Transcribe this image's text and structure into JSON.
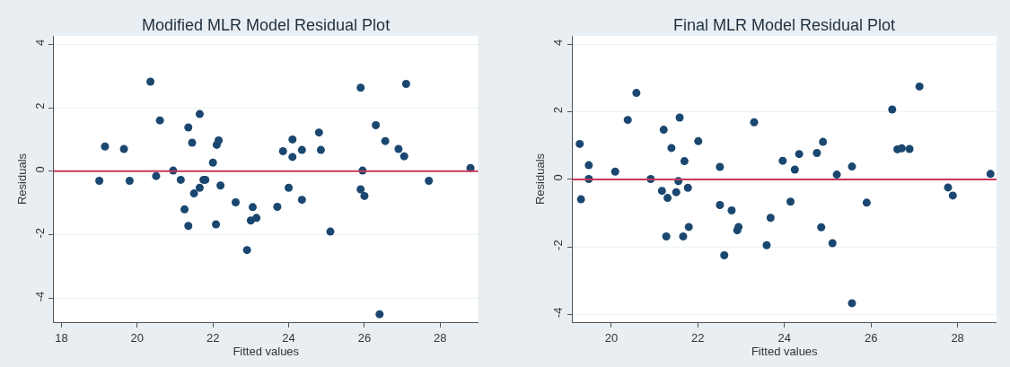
{
  "chart_data": [
    {
      "type": "scatter",
      "title": "Modified MLR Model Residual Plot",
      "xlabel": "Fitted values",
      "ylabel": "Residuals",
      "marker": "circle",
      "grid": "y",
      "xlim": [
        17.8,
        29.0
      ],
      "ylim": [
        -4.75,
        4.26
      ],
      "xticks": [
        18,
        20,
        22,
        24,
        26,
        28
      ],
      "yticks": [
        -4,
        -2,
        0,
        2,
        4
      ],
      "ref_lines": [
        {
          "axis": "y",
          "value": 0,
          "color": "#c8385a"
        }
      ],
      "series": [
        {
          "color": "#1a476f",
          "x": [
            19.0,
            19.15,
            19.65,
            19.8,
            20.35,
            20.5,
            20.6,
            20.95,
            21.15,
            21.25,
            21.35,
            21.35,
            21.45,
            21.5,
            21.65,
            21.65,
            21.75,
            21.8,
            22.0,
            22.08,
            22.1,
            22.15,
            22.2,
            22.6,
            22.9,
            23.0,
            23.05,
            23.15,
            23.7,
            23.85,
            24.0,
            24.1,
            24.1,
            24.35,
            24.35,
            24.8,
            24.85,
            25.1,
            25.9,
            25.9,
            25.95,
            26.0,
            26.3,
            26.4,
            26.55,
            26.9,
            27.05,
            27.1,
            27.7,
            28.8
          ],
          "values": [
            -0.3,
            0.78,
            0.7,
            -0.3,
            2.82,
            -0.15,
            1.6,
            0.02,
            -0.27,
            -1.2,
            1.38,
            -1.72,
            0.9,
            -0.7,
            1.8,
            -0.52,
            -0.27,
            -0.27,
            0.27,
            -1.67,
            0.83,
            0.97,
            -0.45,
            -0.98,
            -2.48,
            -1.55,
            -1.13,
            -1.47,
            -1.12,
            0.63,
            -0.52,
            0.45,
            1.0,
            0.67,
            -0.9,
            1.22,
            0.67,
            -1.9,
            2.63,
            -0.57,
            0.02,
            -0.78,
            1.45,
            -4.5,
            0.95,
            0.7,
            0.47,
            2.75,
            -0.3,
            0.1
          ]
        }
      ]
    },
    {
      "type": "scatter",
      "title": "Final MLR Model Residual Plot",
      "xlabel": "Fitted values",
      "ylabel": "Residuals",
      "marker": "circle",
      "grid": "y",
      "xlim": [
        19.1,
        28.9
      ],
      "ylim": [
        -4.23,
        4.25
      ],
      "xticks": [
        20,
        22,
        24,
        26,
        28
      ],
      "yticks": [
        -4,
        -2,
        0,
        2,
        4
      ],
      "ref_lines": [
        {
          "axis": "y",
          "value": 0,
          "color": "#c8385a"
        }
      ],
      "series": [
        {
          "color": "#1a476f",
          "x": [
            19.27,
            19.3,
            19.48,
            19.48,
            20.09,
            20.58,
            20.38,
            20.91,
            21.17,
            21.21,
            21.3,
            21.27,
            21.39,
            21.5,
            21.55,
            21.58,
            21.66,
            21.69,
            21.77,
            21.79,
            22.01,
            22.51,
            22.51,
            22.61,
            22.78,
            22.91,
            22.94,
            23.3,
            23.59,
            23.68,
            23.96,
            24.14,
            24.24,
            24.34,
            24.75,
            24.89,
            24.85,
            25.11,
            25.21,
            25.56,
            25.56,
            25.9,
            26.49,
            26.61,
            26.71,
            26.89,
            27.12,
            27.78,
            27.89,
            28.76
          ],
          "values": [
            1.05,
            -0.59,
            0.42,
            0.01,
            0.23,
            2.56,
            1.76,
            0.01,
            -0.34,
            1.47,
            -0.55,
            -1.69,
            0.93,
            -0.38,
            -0.05,
            1.83,
            -1.69,
            0.54,
            -0.25,
            -1.41,
            1.13,
            0.37,
            -0.76,
            -2.25,
            -0.92,
            -1.51,
            -1.41,
            1.69,
            -1.95,
            -1.14,
            0.55,
            -0.66,
            0.29,
            0.75,
            0.78,
            1.11,
            -1.42,
            -1.89,
            0.14,
            0.38,
            -3.67,
            -0.69,
            2.07,
            0.89,
            0.92,
            0.9,
            2.75,
            -0.24,
            -0.48,
            0.16
          ]
        }
      ]
    }
  ]
}
